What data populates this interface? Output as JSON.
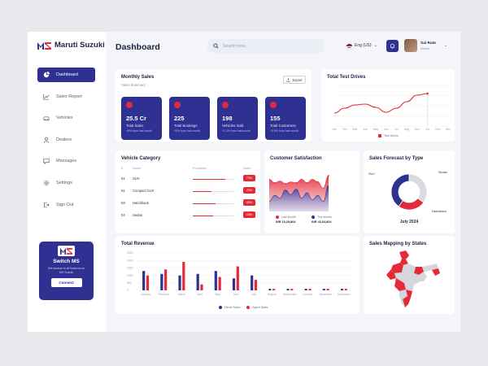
{
  "brand": {
    "name": "Maruti Suzuki",
    "accent": "#2e3192",
    "red": "#e42a3a"
  },
  "header": {
    "title": "Dashboard",
    "search_placeholder": "Search here...",
    "language": "Eng (US)",
    "user_name": "Sai Ram",
    "user_role": "Admin"
  },
  "sidebar": {
    "items": [
      {
        "label": "Dashboard",
        "icon": "pie-chart-icon",
        "active": true
      },
      {
        "label": "Sales Report",
        "icon": "line-chart-icon"
      },
      {
        "label": "Vehicles",
        "icon": "car-icon"
      },
      {
        "label": "Dealers",
        "icon": "user-icon"
      },
      {
        "label": "Messages",
        "icon": "message-icon"
      },
      {
        "label": "Settings",
        "icon": "gear-icon"
      },
      {
        "label": "Sign Out",
        "icon": "sign-out-icon"
      }
    ],
    "promo": {
      "title": "Switch MS",
      "text": "Get access to all features on MS Suzuki",
      "button": "Connect"
    }
  },
  "monthly_sales": {
    "title": "Monthly Sales",
    "subtitle": "Sales Summary",
    "export_label": "Export",
    "stats": [
      {
        "value": "25.5 Cr",
        "label": "Total Sales",
        "note": "+8% from last month"
      },
      {
        "value": "225",
        "label": "Total Bookings",
        "note": "+5% from last month"
      },
      {
        "value": "198",
        "label": "Vehicles Sold",
        "note": "+1.2% from last month"
      },
      {
        "value": "155",
        "label": "Total Customers",
        "note": "+0.5% from last month"
      }
    ]
  },
  "test_drives": {
    "title": "Total Test Drives",
    "legend": "Test Drives"
  },
  "vehicle_category": {
    "title": "Vehicle Category",
    "columns": [
      "#",
      "Name",
      "Popularity",
      "Sales"
    ],
    "rows": [
      {
        "rank": "01",
        "name": "SUV",
        "popularity": 0.8,
        "sales": "73%"
      },
      {
        "rank": "02",
        "name": "Compact SUV",
        "popularity": 0.45,
        "sales": "23%"
      },
      {
        "rank": "03",
        "name": "Hatchback",
        "popularity": 0.55,
        "sales": "48%"
      },
      {
        "rank": "04",
        "name": "Sedan",
        "popularity": 0.5,
        "sales": "15%"
      }
    ]
  },
  "customer_satisfaction": {
    "title": "Customer Satisfaction",
    "last_month_label": "Last Month",
    "last_month_value": "INR 15,25,804",
    "this_month_label": "This Month",
    "this_month_value": "INR 43,54,804"
  },
  "forecast": {
    "title": "Sales Forecast by Type",
    "period": "July 2024",
    "labels": [
      "SUV",
      "Sedan",
      "Hatchback"
    ]
  },
  "total_revenue": {
    "title": "Total Revenue",
    "legend_direct": "Direct Sales",
    "legend_agent": "Agent Sales"
  },
  "sales_mapping": {
    "title": "Sales Mapping by States"
  },
  "chart_data": [
    {
      "type": "line",
      "title": "Total Test Drives",
      "categories": [
        "Jan",
        "Feb",
        "Mar",
        "Apr",
        "May",
        "Jun",
        "Jul",
        "Aug",
        "Sep",
        "Oct",
        "Nov",
        "Dec"
      ],
      "ylim": [
        0,
        100
      ],
      "series": [
        {
          "name": "Test Drives",
          "values": [
            32,
            44,
            52,
            54,
            46,
            34,
            44,
            60,
            76,
            80,
            null,
            null
          ]
        }
      ]
    },
    {
      "type": "area",
      "title": "Customer Satisfaction",
      "ylim": [
        0,
        100
      ],
      "series": [
        {
          "name": "Last Month",
          "values": [
            22,
            36,
            30,
            48,
            38,
            50,
            30,
            42,
            26,
            36,
            22,
            58
          ]
        },
        {
          "name": "This Month",
          "values": [
            72,
            64,
            68,
            62,
            66,
            64,
            72,
            64,
            72,
            66,
            52,
            80
          ]
        }
      ]
    },
    {
      "type": "pie",
      "title": "Sales Forecast by Type",
      "categories": [
        "Sedan",
        "Hatchback",
        "SUV"
      ],
      "values": [
        35,
        25,
        40
      ]
    },
    {
      "type": "bar",
      "title": "Total Revenue",
      "categories": [
        "January",
        "February",
        "March",
        "April",
        "May",
        "June",
        "July",
        "August",
        "September",
        "October",
        "November",
        "December"
      ],
      "ylim": [
        0,
        2500
      ],
      "yticks": [
        0,
        500,
        1000,
        1500,
        2000,
        2500
      ],
      "series": [
        {
          "name": "Direct Sales",
          "values": [
            1300,
            1100,
            1000,
            1100,
            1300,
            800,
            1000,
            100,
            100,
            100,
            100,
            100
          ]
        },
        {
          "name": "Agent Sales",
          "values": [
            1000,
            1400,
            1900,
            400,
            900,
            1600,
            700,
            100,
            100,
            100,
            100,
            100
          ]
        }
      ]
    }
  ]
}
